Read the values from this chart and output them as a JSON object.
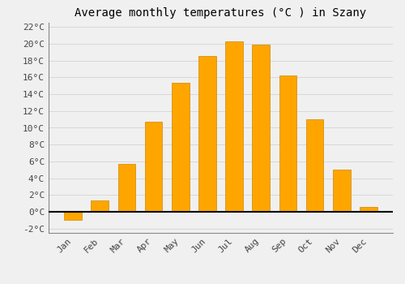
{
  "title": "Average monthly temperatures (°C ) in Szany",
  "months": [
    "Jan",
    "Feb",
    "Mar",
    "Apr",
    "May",
    "Jun",
    "Jul",
    "Aug",
    "Sep",
    "Oct",
    "Nov",
    "Dec"
  ],
  "temperatures": [
    -1.0,
    1.4,
    5.7,
    10.7,
    15.4,
    18.5,
    20.3,
    19.9,
    16.2,
    11.0,
    5.0,
    0.6
  ],
  "bar_color": "#FFA500",
  "bar_edge_color": "#CC8800",
  "background_color": "#F0F0F0",
  "grid_color": "#D8D8D8",
  "ylim": [
    -2.5,
    22.5
  ],
  "yticks": [
    -2,
    0,
    2,
    4,
    6,
    8,
    10,
    12,
    14,
    16,
    18,
    20,
    22
  ],
  "title_fontsize": 10,
  "tick_fontsize": 8,
  "zero_line_color": "#000000",
  "bar_width": 0.65
}
